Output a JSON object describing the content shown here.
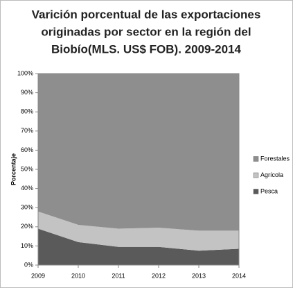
{
  "chart_data": {
    "type": "stacked_area",
    "title": [
      "Varición porcentual  de las  exportaciones",
      "originadas por sector en la región del",
      "Biobío(MLS. US$ FOB). 2009-2014"
    ],
    "y_label": "Porcentaje",
    "categories": [
      "2009",
      "2010",
      "2011",
      "2012",
      "2013",
      "2014"
    ],
    "series": [
      {
        "name": "Pesca",
        "color": "#5a5a5a",
        "values": [
          19,
          12,
          9.5,
          9.5,
          7.5,
          8.5
        ]
      },
      {
        "name": "Agrícola",
        "color": "#c3c3c3",
        "values": [
          9,
          9,
          9.5,
          10,
          10.5,
          9.5
        ]
      },
      {
        "name": "Forestales",
        "color": "#8e8e8e",
        "values": [
          72,
          79,
          81,
          80.5,
          82,
          82
        ]
      }
    ],
    "ylim": [
      0,
      100
    ],
    "yticks": [
      {
        "value": 0,
        "label": "0%"
      },
      {
        "value": 10,
        "label": "10%"
      },
      {
        "value": 20,
        "label": "20%"
      },
      {
        "value": 30,
        "label": "30%"
      },
      {
        "value": 40,
        "label": "40%"
      },
      {
        "value": 50,
        "label": "50%"
      },
      {
        "value": 60,
        "label": "60%"
      },
      {
        "value": 70,
        "label": "70%"
      },
      {
        "value": 80,
        "label": "80%"
      },
      {
        "value": 90,
        "label": "90%"
      },
      {
        "value": 100,
        "label": "100%"
      }
    ],
    "legend": "right",
    "grid": false
  }
}
